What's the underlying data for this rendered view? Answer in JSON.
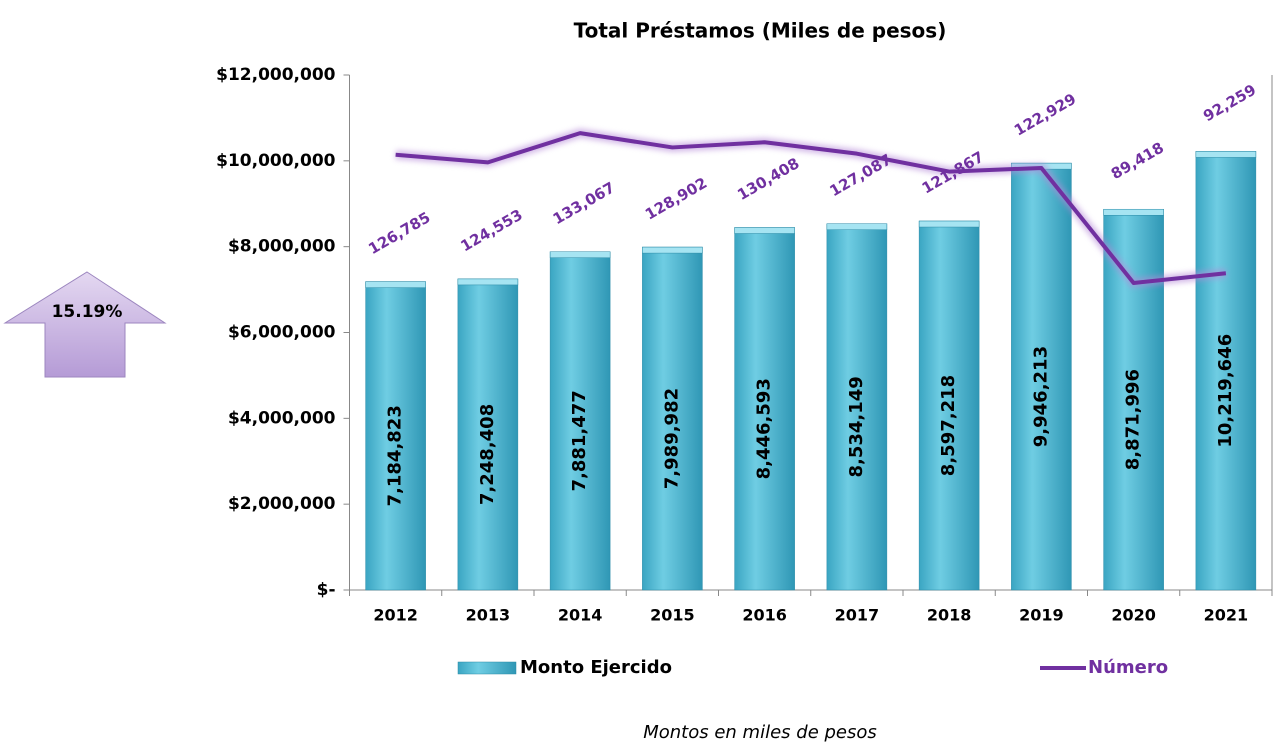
{
  "chart_data": {
    "type": "bar",
    "title": "Total Préstamos (Miles de pesos)",
    "annotation": "15.19%",
    "note": "Montos en miles de pesos",
    "categories": [
      "2012",
      "2013",
      "2014",
      "2015",
      "2016",
      "2017",
      "2018",
      "2019",
      "2020",
      "2021"
    ],
    "series": [
      {
        "name": "Monto Ejercido",
        "type": "bar",
        "color": "#4bb8d2",
        "values": [
          7184823,
          7248408,
          7881477,
          7989982,
          8446593,
          8534149,
          8597218,
          9946213,
          8871996,
          10219646
        ],
        "value_labels": [
          "7,184,823",
          "7,248,408",
          "7,881,477",
          "7,989,982",
          "8,446,593",
          "8,534,149",
          "8,597,218",
          "9,946,213",
          "8,871,996",
          "10,219,646"
        ]
      },
      {
        "name": "Número",
        "type": "line",
        "axis": "y2",
        "color": "#7030a0",
        "values": [
          126785,
          124553,
          133067,
          128902,
          130408,
          127087,
          121867,
          122929,
          89418,
          92259
        ],
        "value_labels": [
          "126,785",
          "124,553",
          "133,067",
          "128,902",
          "130,408",
          "127,087",
          "121,867",
          "122,929",
          "89,418",
          "92,259"
        ]
      }
    ],
    "ylim": [
      0,
      12000000
    ],
    "yticks": [
      {
        "value": 0,
        "label": "$-"
      },
      {
        "value": 2000000,
        "label": "$2,000,000"
      },
      {
        "value": 4000000,
        "label": "$4,000,000"
      },
      {
        "value": 6000000,
        "label": "$6,000,000"
      },
      {
        "value": 8000000,
        "label": "$8,000,000"
      },
      {
        "value": 10000000,
        "label": "$10,000,000"
      },
      {
        "value": 12000000,
        "label": "$12,000,000"
      }
    ],
    "y2lim": [
      0,
      150000
    ],
    "legend": "bottom"
  }
}
